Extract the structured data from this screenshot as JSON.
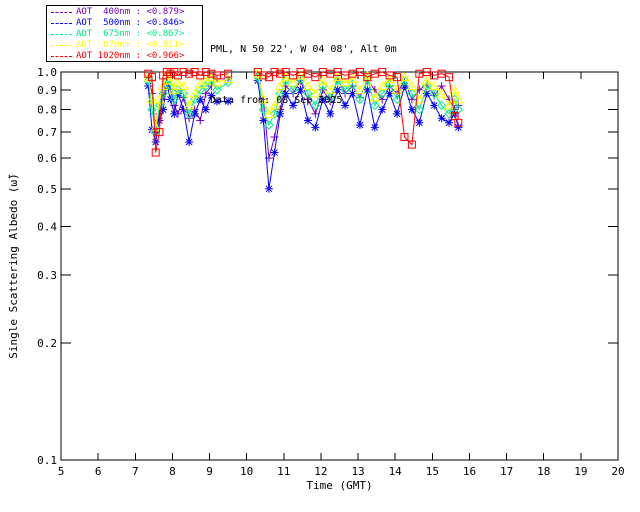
{
  "header": {
    "line1": "PML, N 50 22', W 04 08', Alt 0m",
    "line2": "Data from: 08 Sep 2025"
  },
  "chart_data": {
    "type": "line",
    "title": "",
    "xlabel": "Time (GMT)",
    "ylabel": "Single Scattering Albedo (ω̃)",
    "xlim": [
      5,
      20
    ],
    "ylim": [
      0.1,
      1.0
    ],
    "yscale": "log",
    "grid": false,
    "legend_position": "top-left",
    "xticks": [
      5,
      6,
      7,
      8,
      9,
      10,
      11,
      12,
      13,
      14,
      15,
      16,
      17,
      18,
      19,
      20
    ],
    "yticks": [
      1.0,
      0.9,
      0.8,
      0.7,
      0.6,
      0.5,
      0.4,
      0.3,
      0.2,
      0.1
    ],
    "gap_threshold_hours": 0.6,
    "x": [
      7.35,
      7.45,
      7.55,
      7.65,
      7.75,
      7.85,
      7.95,
      8.05,
      8.15,
      8.3,
      8.45,
      8.6,
      8.75,
      8.9,
      9.05,
      9.2,
      9.5,
      10.3,
      10.45,
      10.6,
      10.75,
      10.9,
      11.05,
      11.25,
      11.45,
      11.65,
      11.85,
      12.05,
      12.25,
      12.45,
      12.65,
      12.85,
      13.05,
      13.25,
      13.45,
      13.65,
      13.85,
      14.05,
      14.25,
      14.45,
      14.65,
      14.85,
      15.05,
      15.25,
      15.45,
      15.6,
      15.7
    ],
    "series": [
      {
        "name": "AOT  400nm",
        "wavelength_nm": 400,
        "mean_label": "<0.879>",
        "legend_text": "AOT  400nm : <0.879>",
        "color": "#7700BB",
        "marker": "plus",
        "values": [
          0.97,
          0.88,
          0.7,
          0.78,
          0.85,
          0.96,
          0.9,
          0.82,
          0.78,
          0.86,
          0.76,
          0.8,
          0.75,
          0.88,
          0.92,
          0.96,
          0.96,
          0.99,
          0.85,
          0.6,
          0.68,
          0.8,
          0.92,
          0.88,
          0.95,
          0.85,
          0.78,
          0.9,
          0.84,
          0.96,
          0.88,
          0.92,
          0.86,
          0.95,
          0.9,
          0.85,
          0.92,
          0.88,
          0.95,
          0.85,
          0.9,
          0.93,
          0.87,
          0.92,
          0.85,
          0.8,
          0.82
        ]
      },
      {
        "name": "AOT  500nm",
        "wavelength_nm": 500,
        "mean_label": "<0.846>",
        "legend_text": "AOT  500nm : <0.846>",
        "color": "#0000FF",
        "marker": "asterisk",
        "values": [
          0.92,
          0.71,
          0.66,
          0.75,
          0.8,
          0.93,
          0.85,
          0.78,
          0.88,
          0.8,
          0.66,
          0.78,
          0.85,
          0.8,
          0.87,
          0.84,
          0.84,
          0.95,
          0.75,
          0.5,
          0.62,
          0.78,
          0.88,
          0.82,
          0.9,
          0.75,
          0.72,
          0.85,
          0.78,
          0.9,
          0.82,
          0.88,
          0.73,
          0.9,
          0.72,
          0.8,
          0.88,
          0.78,
          0.92,
          0.8,
          0.74,
          0.88,
          0.82,
          0.76,
          0.74,
          0.78,
          0.72
        ]
      },
      {
        "name": "AOT  675nm",
        "wavelength_nm": 675,
        "mean_label": "<0.867>",
        "legend_text": "AOT  675nm : <0.867>",
        "color": "#00EE88",
        "marker": "diamond",
        "values": [
          0.95,
          0.8,
          0.7,
          0.82,
          0.88,
          0.95,
          0.92,
          0.85,
          0.9,
          0.88,
          0.78,
          0.85,
          0.9,
          0.92,
          0.95,
          0.9,
          0.94,
          0.97,
          0.8,
          0.73,
          0.78,
          0.88,
          0.95,
          0.9,
          0.96,
          0.88,
          0.82,
          0.92,
          0.86,
          0.95,
          0.9,
          0.93,
          0.85,
          0.96,
          0.82,
          0.88,
          0.93,
          0.85,
          0.95,
          0.88,
          0.8,
          0.92,
          0.88,
          0.82,
          0.78,
          0.85,
          0.8
        ]
      },
      {
        "name": "AOT  870nm",
        "wavelength_nm": 870,
        "mean_label": "<0.911>",
        "legend_text": "AOT  870nm : <0.911>",
        "color": "#FFFF00",
        "marker": "triangle",
        "values": [
          0.97,
          0.85,
          0.72,
          0.85,
          0.92,
          0.98,
          0.95,
          0.9,
          0.94,
          0.92,
          0.82,
          0.88,
          0.93,
          0.95,
          0.97,
          0.94,
          0.96,
          0.99,
          0.85,
          0.78,
          0.82,
          0.92,
          0.97,
          0.94,
          0.98,
          0.92,
          0.88,
          0.95,
          0.9,
          0.97,
          0.94,
          0.96,
          0.9,
          0.98,
          0.86,
          0.92,
          0.96,
          0.9,
          0.97,
          0.92,
          0.85,
          0.95,
          0.92,
          0.88,
          0.82,
          0.9,
          0.85
        ]
      },
      {
        "name": "AOT 1020nm",
        "wavelength_nm": 1020,
        "mean_label": "<0.966>",
        "legend_text": "AOT 1020nm : <0.966>",
        "color": "#FF0000",
        "marker": "square",
        "values": [
          0.99,
          0.97,
          0.62,
          0.7,
          0.98,
          1.0,
          0.99,
          1.0,
          0.98,
          1.0,
          0.99,
          1.0,
          0.98,
          1.0,
          0.99,
          0.98,
          0.99,
          1.0,
          0.98,
          0.97,
          1.0,
          0.99,
          1.0,
          0.98,
          1.0,
          0.99,
          0.97,
          1.0,
          0.99,
          1.0,
          0.98,
          0.99,
          1.0,
          0.97,
          0.99,
          1.0,
          0.98,
          0.97,
          0.68,
          0.65,
          0.99,
          1.0,
          0.98,
          0.99,
          0.97,
          0.77,
          0.74
        ]
      }
    ]
  }
}
